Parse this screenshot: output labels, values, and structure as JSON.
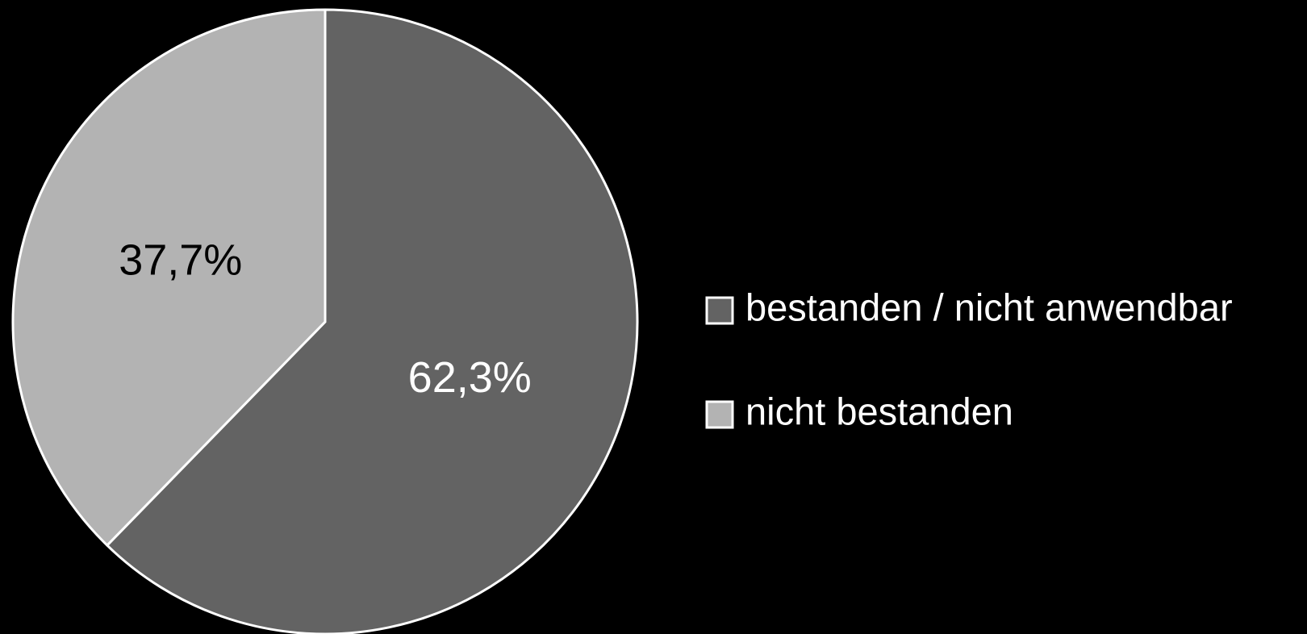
{
  "chart_data": {
    "type": "pie",
    "categories": [
      "bestanden / nicht anwendbar",
      "nicht bestanden"
    ],
    "values": [
      62.3,
      37.7
    ],
    "value_labels": [
      "62,3%",
      "37,7%"
    ],
    "colors": [
      "#636363",
      "#b3b3b3"
    ],
    "legend": "right"
  }
}
